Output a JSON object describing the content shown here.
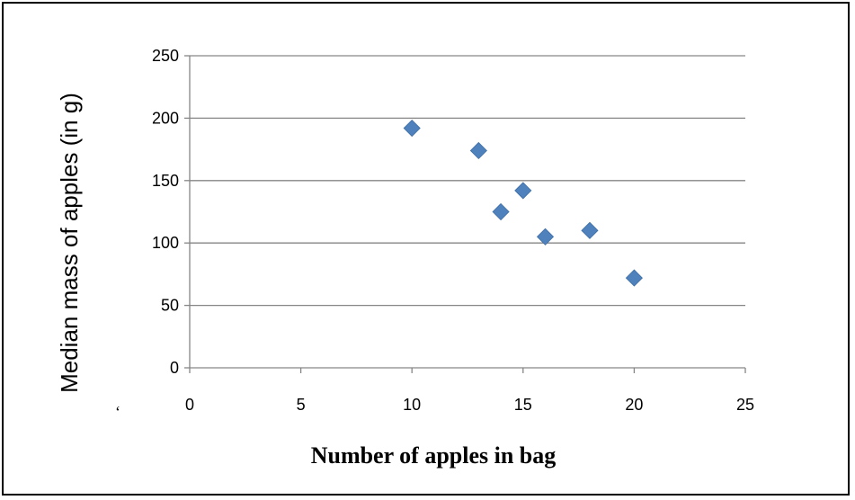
{
  "chart_data": {
    "type": "scatter",
    "xlabel": "Number of apples in bag",
    "ylabel": "Median mass of apples (in g)",
    "xlim": [
      0,
      25
    ],
    "ylim": [
      0,
      250
    ],
    "xticks": [
      0,
      5,
      10,
      15,
      20,
      25
    ],
    "yticks": [
      0,
      50,
      100,
      150,
      200,
      250
    ],
    "grid": "horizontal",
    "marker": "diamond",
    "color": "#4f81bd",
    "points": [
      {
        "x": 10,
        "y": 192
      },
      {
        "x": 13,
        "y": 174
      },
      {
        "x": 14,
        "y": 125
      },
      {
        "x": 15,
        "y": 142
      },
      {
        "x": 16,
        "y": 105
      },
      {
        "x": 18,
        "y": 110
      },
      {
        "x": 20,
        "y": 72
      }
    ]
  },
  "stray_mark": "‘"
}
